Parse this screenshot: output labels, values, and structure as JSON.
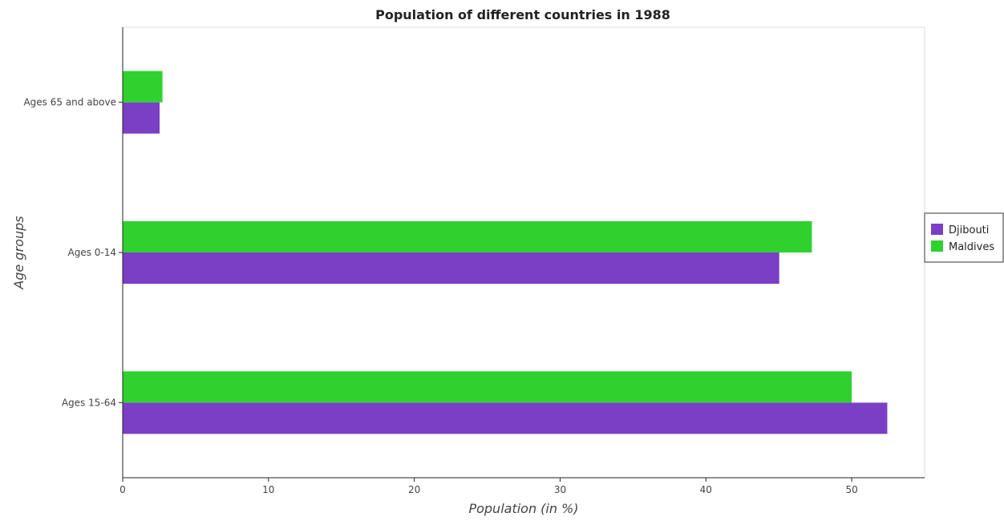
{
  "chart_data": {
    "type": "bar",
    "orientation": "horizontal",
    "title": "Population of different countries in 1988",
    "xlabel": "Population (in %)",
    "ylabel": "Age groups",
    "categories": [
      "Ages 65 and above",
      "Ages 0-14",
      "Ages 15-64"
    ],
    "series": [
      {
        "name": "Djibouti",
        "color": "#7b3fc6",
        "values": [
          2.53,
          45.03,
          52.44
        ]
      },
      {
        "name": "Maldives",
        "color": "#2fd12f",
        "values": [
          2.73,
          47.27,
          50.0
        ]
      }
    ],
    "x_ticks": [
      "0",
      "10",
      "20",
      "30",
      "40",
      "50"
    ],
    "xlim": [
      0,
      55
    ],
    "grid": false,
    "legend_position": "right"
  }
}
